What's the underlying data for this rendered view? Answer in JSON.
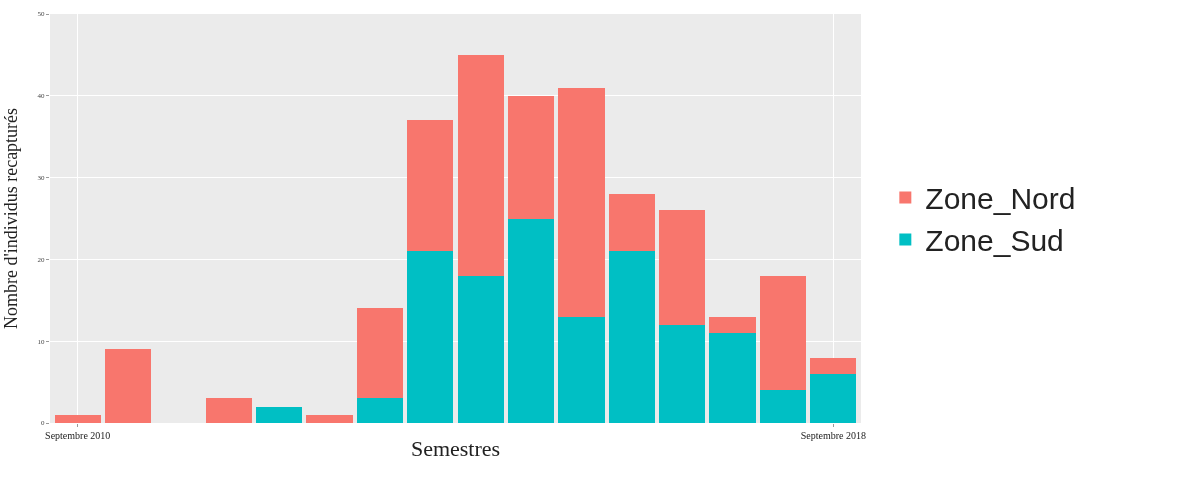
{
  "chart_data": {
    "type": "bar",
    "stacked": true,
    "xlabel": "Semestres",
    "ylabel": "Nombre d'individus recapturés",
    "categories": [
      "Septembre 2010",
      null,
      null,
      null,
      null,
      null,
      null,
      null,
      null,
      null,
      null,
      null,
      null,
      null,
      null,
      "Septembre 2018"
    ],
    "series": [
      {
        "name": "Zone_Sud",
        "color": "#00bfc4",
        "values": [
          0,
          0,
          0,
          0,
          2,
          0,
          3,
          21,
          18,
          25,
          13,
          21,
          12,
          11,
          4,
          6
        ]
      },
      {
        "name": "Zone_Nord",
        "color": "#f8766d",
        "values": [
          1,
          9,
          0,
          3,
          0,
          1,
          11,
          16,
          27,
          15,
          28,
          7,
          14,
          2,
          14,
          2
        ]
      }
    ],
    "ylim": [
      0,
      50
    ],
    "yticks": [
      0,
      10,
      20,
      30,
      40,
      50
    ],
    "grid": true,
    "legend": "right"
  }
}
